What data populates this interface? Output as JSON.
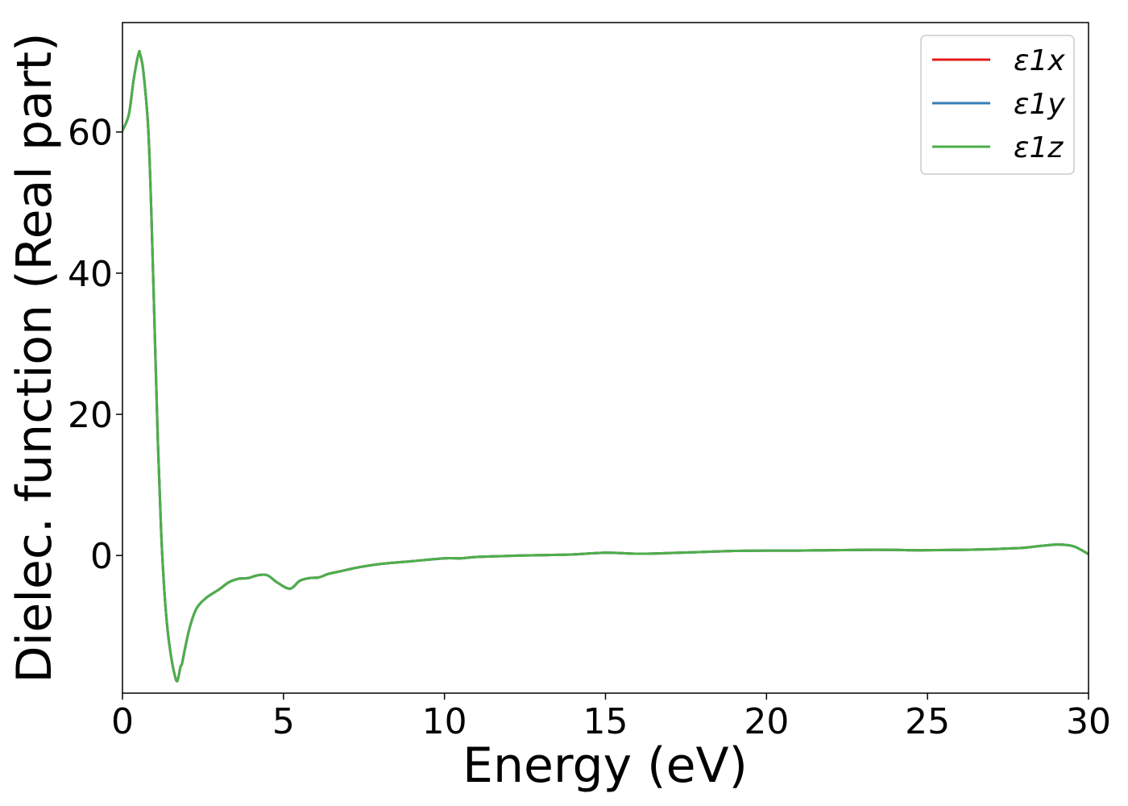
{
  "chart_data": {
    "type": "line",
    "title": "",
    "xlabel": "Energy (eV)",
    "ylabel": "Dielec. function (Real part)",
    "xlim": [
      0,
      30
    ],
    "ylim": [
      -19.5,
      75.5
    ],
    "grid": false,
    "legend_position": "top-right",
    "x_ticks": [
      0,
      5,
      10,
      15,
      20,
      25,
      30
    ],
    "y_ticks": [
      0,
      20,
      40,
      60
    ],
    "x_tick_labels": [
      "0",
      "5",
      "10",
      "15",
      "20",
      "25",
      "30"
    ],
    "y_tick_labels": [
      "0",
      "20",
      "40",
      "60"
    ],
    "x": [
      0,
      0.2,
      0.35,
      0.5,
      0.55,
      0.65,
      0.8,
      0.9,
      1.0,
      1.1,
      1.2,
      1.3,
      1.4,
      1.5,
      1.6,
      1.7,
      1.8,
      1.85,
      1.95,
      2.1,
      2.3,
      2.6,
      3.0,
      3.3,
      3.6,
      3.9,
      4.2,
      4.5,
      4.8,
      5.2,
      5.5,
      5.8,
      6.1,
      6.4,
      6.8,
      7.3,
      8.0,
      9.0,
      10.0,
      10.5,
      11.0,
      12.0,
      13.0,
      14.0,
      15.0,
      16.0,
      17.0,
      18.0,
      19.0,
      20.0,
      21.0,
      22.0,
      23.0,
      24.0,
      24.5,
      25.0,
      26.0,
      27.0,
      27.5,
      28.0,
      28.5,
      29.0,
      29.3,
      29.6,
      30.0
    ],
    "series": [
      {
        "name": "ε1x",
        "color": "#e41a1c",
        "values": [
          60.2,
          62.5,
          67.5,
          71.1,
          71.0,
          68.5,
          60.5,
          48.0,
          32.0,
          16.0,
          3.5,
          -5.0,
          -10.5,
          -14.0,
          -16.5,
          -17.8,
          -15.8,
          -15.3,
          -13.0,
          -10.0,
          -7.5,
          -6.0,
          -4.8,
          -3.8,
          -3.3,
          -3.2,
          -2.8,
          -2.8,
          -3.8,
          -4.7,
          -3.6,
          -3.2,
          -3.1,
          -2.6,
          -2.2,
          -1.7,
          -1.2,
          -0.8,
          -0.4,
          -0.4,
          -0.2,
          -0.05,
          0.05,
          0.15,
          0.4,
          0.25,
          0.35,
          0.5,
          0.65,
          0.7,
          0.7,
          0.75,
          0.8,
          0.8,
          0.75,
          0.75,
          0.8,
          0.9,
          1.0,
          1.1,
          1.35,
          1.55,
          1.5,
          1.2,
          0.2
        ]
      },
      {
        "name": "ε1y",
        "color": "#377eb8",
        "values": [
          60.2,
          62.5,
          67.5,
          71.1,
          71.0,
          68.5,
          60.5,
          48.0,
          32.0,
          16.0,
          3.5,
          -5.0,
          -10.5,
          -14.0,
          -16.5,
          -17.8,
          -15.8,
          -15.3,
          -13.0,
          -10.0,
          -7.5,
          -6.0,
          -4.8,
          -3.8,
          -3.3,
          -3.2,
          -2.8,
          -2.8,
          -3.8,
          -4.7,
          -3.6,
          -3.2,
          -3.1,
          -2.6,
          -2.2,
          -1.7,
          -1.2,
          -0.8,
          -0.4,
          -0.4,
          -0.2,
          -0.05,
          0.05,
          0.15,
          0.4,
          0.25,
          0.35,
          0.5,
          0.65,
          0.7,
          0.7,
          0.75,
          0.8,
          0.8,
          0.75,
          0.75,
          0.8,
          0.9,
          1.0,
          1.1,
          1.35,
          1.55,
          1.5,
          1.2,
          0.2
        ]
      },
      {
        "name": "ε1z",
        "color": "#4daf4a",
        "values": [
          60.2,
          62.5,
          67.5,
          71.1,
          71.0,
          68.5,
          60.5,
          48.0,
          32.0,
          16.0,
          3.5,
          -5.0,
          -10.5,
          -14.0,
          -16.5,
          -17.8,
          -15.8,
          -15.3,
          -13.0,
          -10.0,
          -7.5,
          -6.0,
          -4.8,
          -3.8,
          -3.3,
          -3.2,
          -2.8,
          -2.8,
          -3.8,
          -4.7,
          -3.6,
          -3.2,
          -3.1,
          -2.6,
          -2.2,
          -1.7,
          -1.2,
          -0.8,
          -0.4,
          -0.4,
          -0.2,
          -0.05,
          0.05,
          0.15,
          0.4,
          0.25,
          0.35,
          0.5,
          0.65,
          0.7,
          0.7,
          0.75,
          0.8,
          0.8,
          0.75,
          0.75,
          0.8,
          0.9,
          1.0,
          1.1,
          1.35,
          1.55,
          1.5,
          1.2,
          0.2
        ]
      }
    ]
  }
}
